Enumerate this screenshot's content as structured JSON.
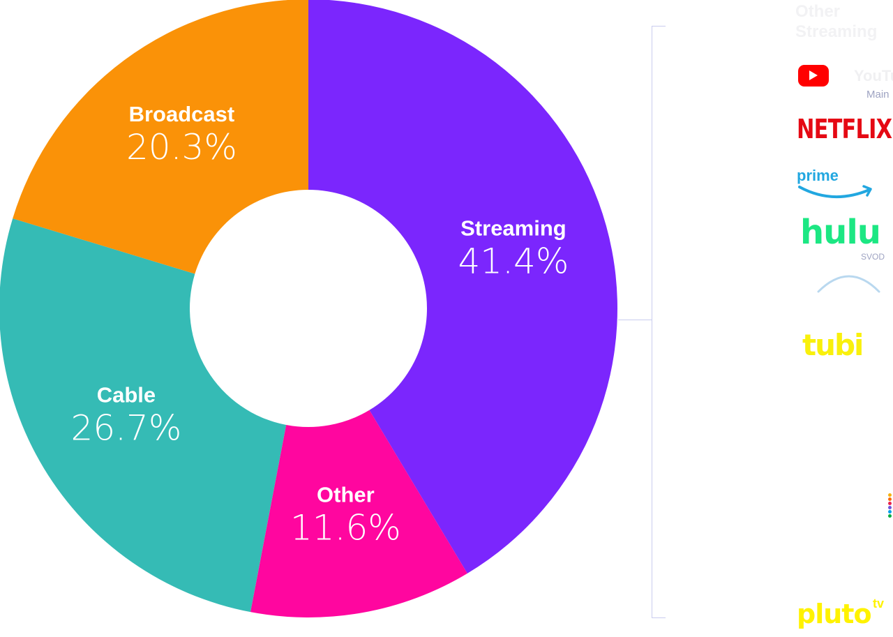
{
  "chart_data": {
    "type": "pie",
    "style": "donut",
    "categories": [
      "Streaming",
      "Other",
      "Cable",
      "Broadcast"
    ],
    "values": [
      41.4,
      11.6,
      26.7,
      20.3
    ],
    "value_labels": [
      "41.4%",
      "11.6%",
      "26.7%",
      "20.3%"
    ],
    "colors": [
      "#7b26fd",
      "#ff069f",
      "#35bbb5",
      "#fa9208"
    ],
    "start": "top, clockwise",
    "legend": "labels on segments"
  },
  "legend_panel": {
    "title": "Other Streaming",
    "logos": [
      {
        "icon": "youtube-logo",
        "text": "YouTube",
        "sub": "Main",
        "color": "#ff0000"
      },
      {
        "icon": "netflix-logo",
        "text": "NETFLIX",
        "color": "#e50914"
      },
      {
        "icon": "prime-video-logo",
        "text": "prime",
        "color": "#22a7e0"
      },
      {
        "icon": "hulu-logo",
        "text": "hulu",
        "sub": "SVOD",
        "color": "#1ce783"
      },
      {
        "icon": "arc-logo"
      },
      {
        "icon": "tubi-logo",
        "text": "tubi",
        "color": "#f9f00c"
      },
      {
        "icon": "peacock-dots-logo"
      },
      {
        "icon": "pluto-tv-logo",
        "text": "pluto",
        "sub": "tv",
        "color": "#fff200"
      }
    ]
  }
}
